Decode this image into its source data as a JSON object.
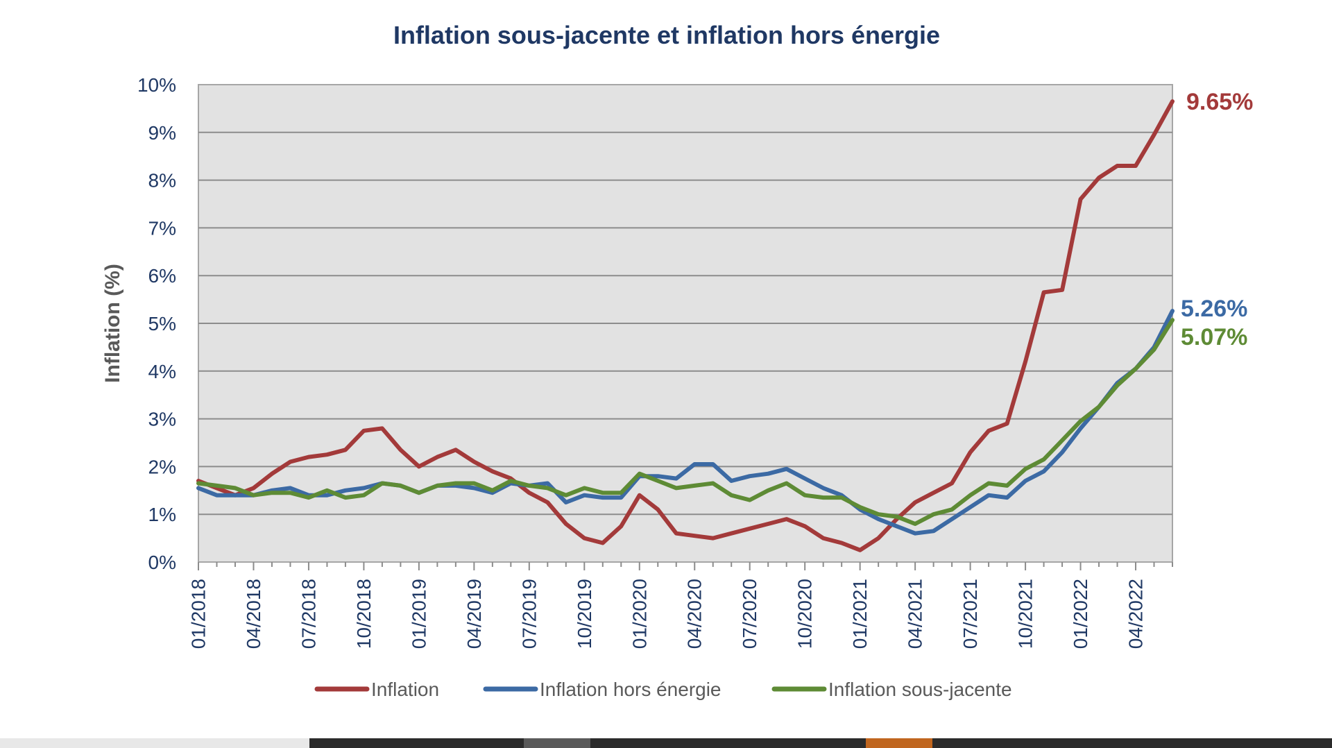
{
  "chart_data": {
    "type": "line",
    "title": "Inflation sous-jacente et inflation hors énergie",
    "xlabel": "",
    "ylabel": "Inflation (%)",
    "ylim": [
      0,
      10
    ],
    "yticks": [
      "0%",
      "1%",
      "2%",
      "3%",
      "4%",
      "5%",
      "6%",
      "7%",
      "8%",
      "9%",
      "10%"
    ],
    "grid": true,
    "legend_position": "bottom",
    "x": [
      "01/2018",
      "02/2018",
      "03/2018",
      "04/2018",
      "05/2018",
      "06/2018",
      "07/2018",
      "08/2018",
      "09/2018",
      "10/2018",
      "11/2018",
      "12/2018",
      "01/2019",
      "02/2019",
      "03/2019",
      "04/2019",
      "05/2019",
      "06/2019",
      "07/2019",
      "08/2019",
      "09/2019",
      "10/2019",
      "11/2019",
      "12/2019",
      "01/2020",
      "02/2020",
      "03/2020",
      "04/2020",
      "05/2020",
      "06/2020",
      "07/2020",
      "08/2020",
      "09/2020",
      "10/2020",
      "11/2020",
      "12/2020",
      "01/2021",
      "02/2021",
      "03/2021",
      "04/2021",
      "05/2021",
      "06/2021",
      "07/2021",
      "08/2021",
      "09/2021",
      "10/2021",
      "11/2021",
      "12/2021",
      "01/2022",
      "02/2022",
      "03/2022",
      "04/2022",
      "05/2022",
      "06/2022"
    ],
    "xtick_labels": [
      "01/2018",
      "04/2018",
      "07/2018",
      "10/2018",
      "01/2019",
      "04/2019",
      "07/2019",
      "10/2019",
      "01/2020",
      "04/2020",
      "07/2020",
      "10/2020",
      "01/2021",
      "04/2021",
      "07/2021",
      "10/2021",
      "01/2022",
      "04/2022"
    ],
    "series": [
      {
        "name": "Inflation",
        "color": "#a33a3a",
        "end_label": "9.65%",
        "values": [
          1.7,
          1.55,
          1.4,
          1.55,
          1.85,
          2.1,
          2.2,
          2.25,
          2.35,
          2.75,
          2.8,
          2.35,
          2.0,
          2.2,
          2.35,
          2.1,
          1.9,
          1.75,
          1.45,
          1.25,
          0.8,
          0.5,
          0.4,
          0.75,
          1.4,
          1.1,
          0.6,
          0.55,
          0.5,
          0.6,
          0.7,
          0.8,
          0.9,
          0.75,
          0.5,
          0.4,
          0.25,
          0.5,
          0.9,
          1.25,
          1.45,
          1.65,
          2.3,
          2.75,
          2.9,
          4.2,
          5.65,
          5.7,
          7.6,
          8.05,
          8.3,
          8.3,
          8.95,
          9.65
        ]
      },
      {
        "name": "Inflation hors énergie",
        "color": "#3c6aa4",
        "end_label": "5.26%",
        "values": [
          1.55,
          1.4,
          1.4,
          1.4,
          1.5,
          1.55,
          1.4,
          1.4,
          1.5,
          1.55,
          1.65,
          1.6,
          1.45,
          1.6,
          1.6,
          1.55,
          1.45,
          1.65,
          1.6,
          1.65,
          1.25,
          1.4,
          1.35,
          1.35,
          1.8,
          1.8,
          1.75,
          2.05,
          2.05,
          1.7,
          1.8,
          1.85,
          1.95,
          1.75,
          1.55,
          1.4,
          1.1,
          0.9,
          0.75,
          0.6,
          0.65,
          0.9,
          1.15,
          1.4,
          1.35,
          1.7,
          1.9,
          2.3,
          2.8,
          3.25,
          3.75,
          4.05,
          4.5,
          5.26
        ]
      },
      {
        "name": "Inflation sous-jacente",
        "color": "#5e8b35",
        "end_label": "5.07%",
        "values": [
          1.65,
          1.6,
          1.55,
          1.4,
          1.45,
          1.45,
          1.35,
          1.5,
          1.35,
          1.4,
          1.65,
          1.6,
          1.45,
          1.6,
          1.65,
          1.65,
          1.5,
          1.7,
          1.6,
          1.55,
          1.4,
          1.55,
          1.45,
          1.45,
          1.85,
          1.7,
          1.55,
          1.6,
          1.65,
          1.4,
          1.3,
          1.5,
          1.65,
          1.4,
          1.35,
          1.35,
          1.15,
          1.0,
          0.95,
          0.8,
          1.0,
          1.1,
          1.4,
          1.65,
          1.6,
          1.95,
          2.15,
          2.55,
          2.95,
          3.25,
          3.7,
          4.05,
          4.45,
          5.07
        ]
      }
    ]
  }
}
